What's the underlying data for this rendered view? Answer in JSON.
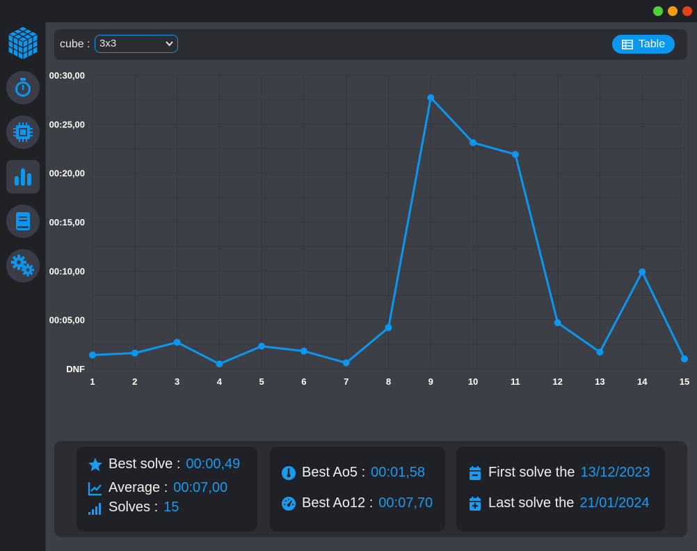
{
  "window": {
    "controls": [
      "minimize-green",
      "maximize-orange",
      "close-red"
    ]
  },
  "sidebar": {
    "items": [
      {
        "name": "cube-logo-icon"
      },
      {
        "name": "timer-icon"
      },
      {
        "name": "cpu-icon"
      },
      {
        "name": "stats-icon",
        "active": true
      },
      {
        "name": "book-icon"
      },
      {
        "name": "gears-icon"
      }
    ]
  },
  "toolbar": {
    "cube_label": "cube :",
    "cube_value": "3x3",
    "table_label": "Table"
  },
  "chart_data": {
    "type": "line",
    "categories": [
      "1",
      "2",
      "3",
      "4",
      "5",
      "6",
      "7",
      "8",
      "9",
      "10",
      "11",
      "12",
      "13",
      "14",
      "15"
    ],
    "series": [
      {
        "values": [
          1.4,
          1.6,
          2.7,
          0.49,
          2.3,
          1.8,
          0.6,
          4.2,
          27.7,
          23.1,
          21.9,
          4.7,
          1.7,
          9.9,
          1.0
        ],
        "color": "#0b97f0"
      }
    ],
    "yticks": [
      {
        "value": 0,
        "label": "DNF"
      },
      {
        "value": 5,
        "label": "00:05,00"
      },
      {
        "value": 10,
        "label": "00:10,00"
      },
      {
        "value": 15,
        "label": "00:15,00"
      },
      {
        "value": 20,
        "label": "00:20,00"
      },
      {
        "value": 25,
        "label": "00:25,00"
      },
      {
        "value": 30,
        "label": "00:30,00"
      }
    ],
    "ylim": [
      0,
      30
    ],
    "grid": true
  },
  "stats": {
    "best_solve_label": "Best solve :",
    "best_solve_value": "00:00,49",
    "average_label": "Average :",
    "average_value": "00:07,00",
    "solves_label": "Solves :",
    "solves_value": "15",
    "best_ao5_label": "Best Ao5 :",
    "best_ao5_value": "00:01,58",
    "best_ao12_label": "Best Ao12 :",
    "best_ao12_value": "00:07,70",
    "first_solve_label": "First solve the",
    "first_solve_value": "13/12/2023",
    "last_solve_label": "Last solve the",
    "last_solve_value": "21/01/2024"
  },
  "colors": {
    "accent": "#0b97f0",
    "background": "#3c3f46",
    "panel": "#2b2d33",
    "card": "#1f2126"
  }
}
